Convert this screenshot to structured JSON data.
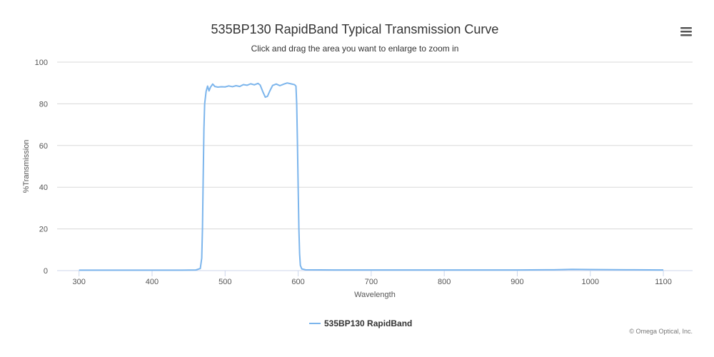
{
  "chart_data": {
    "type": "line",
    "title": "535BP130 RapidBand Typical Transmission Curve",
    "subtitle": "Click and drag the area you want to enlarge to zoom in",
    "xlabel": "Wavelength",
    "ylabel": "%Transmission",
    "xlim": [
      270,
      1140
    ],
    "ylim": [
      0,
      100
    ],
    "x_ticks": [
      300,
      400,
      500,
      600,
      700,
      800,
      900,
      1000,
      1100
    ],
    "y_ticks": [
      0,
      20,
      40,
      60,
      80,
      100
    ],
    "grid": true,
    "legend_position": "bottom-center",
    "series": [
      {
        "name": "535BP130 RapidBand",
        "color": "#7cb5ec",
        "points": [
          [
            300,
            0.2
          ],
          [
            350,
            0.2
          ],
          [
            400,
            0.2
          ],
          [
            440,
            0.2
          ],
          [
            460,
            0.3
          ],
          [
            466,
            1.0
          ],
          [
            468,
            6
          ],
          [
            469,
            20
          ],
          [
            470,
            45
          ],
          [
            471,
            68
          ],
          [
            472,
            80
          ],
          [
            474,
            86
          ],
          [
            476,
            88.5
          ],
          [
            478,
            86.2
          ],
          [
            480,
            88.0
          ],
          [
            483,
            89.5
          ],
          [
            486,
            88.3
          ],
          [
            490,
            88.0
          ],
          [
            495,
            88.2
          ],
          [
            500,
            88.1
          ],
          [
            505,
            88.6
          ],
          [
            510,
            88.2
          ],
          [
            515,
            88.7
          ],
          [
            520,
            88.3
          ],
          [
            525,
            89.2
          ],
          [
            530,
            88.9
          ],
          [
            535,
            89.6
          ],
          [
            540,
            89.1
          ],
          [
            545,
            89.8
          ],
          [
            548,
            89.0
          ],
          [
            552,
            85.5
          ],
          [
            555,
            83.2
          ],
          [
            558,
            83.6
          ],
          [
            561,
            86.0
          ],
          [
            565,
            88.8
          ],
          [
            570,
            89.5
          ],
          [
            575,
            88.7
          ],
          [
            580,
            89.4
          ],
          [
            585,
            90.0
          ],
          [
            590,
            89.6
          ],
          [
            595,
            89.2
          ],
          [
            597,
            88.5
          ],
          [
            598,
            80
          ],
          [
            599,
            62
          ],
          [
            600,
            40
          ],
          [
            601,
            20
          ],
          [
            602,
            8
          ],
          [
            603,
            2.5
          ],
          [
            605,
            0.8
          ],
          [
            610,
            0.4
          ],
          [
            650,
            0.3
          ],
          [
            700,
            0.3
          ],
          [
            800,
            0.3
          ],
          [
            900,
            0.3
          ],
          [
            950,
            0.4
          ],
          [
            975,
            0.6
          ],
          [
            1000,
            0.5
          ],
          [
            1050,
            0.4
          ],
          [
            1100,
            0.3
          ]
        ]
      }
    ]
  },
  "credit": "© Omega Optical, Inc.",
  "menu_icon": "hamburger-menu-icon"
}
